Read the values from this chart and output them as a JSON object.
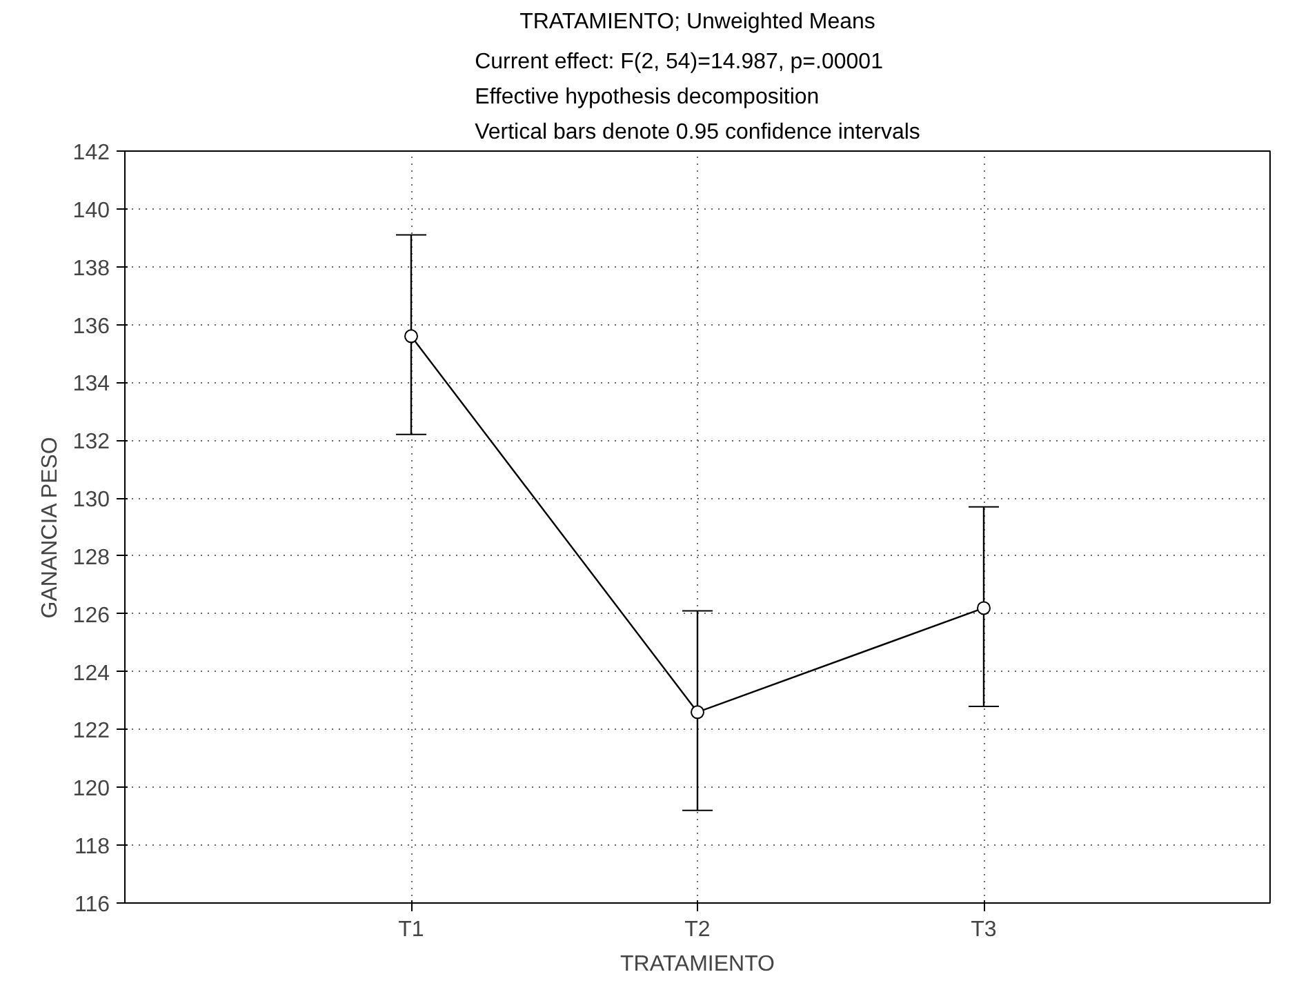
{
  "chart_data": {
    "type": "line",
    "title": "TRATAMIENTO; Unweighted Means",
    "subtitle": "Current effect: F(2, 54)=14.987, p=.00001\nEffective hypothesis decomposition\nVertical bars denote 0.95 confidence intervals",
    "xlabel": "TRATAMIENTO",
    "ylabel": "GANANCIA PESO",
    "categories": [
      "T1",
      "T2",
      "T3"
    ],
    "series": [
      {
        "color": "#000000",
        "values": [
          135.6,
          122.6,
          126.2
        ],
        "errors": [
          [
            132.2,
            139.1
          ],
          [
            119.2,
            126.1
          ],
          [
            122.8,
            129.7
          ]
        ]
      }
    ],
    "ylim": [
      116,
      142
    ],
    "yticks": [
      116,
      118,
      120,
      122,
      124,
      126,
      128,
      130,
      132,
      134,
      136,
      138,
      140,
      142
    ],
    "grid": true,
    "marker": "circle",
    "line_style": "solid"
  }
}
